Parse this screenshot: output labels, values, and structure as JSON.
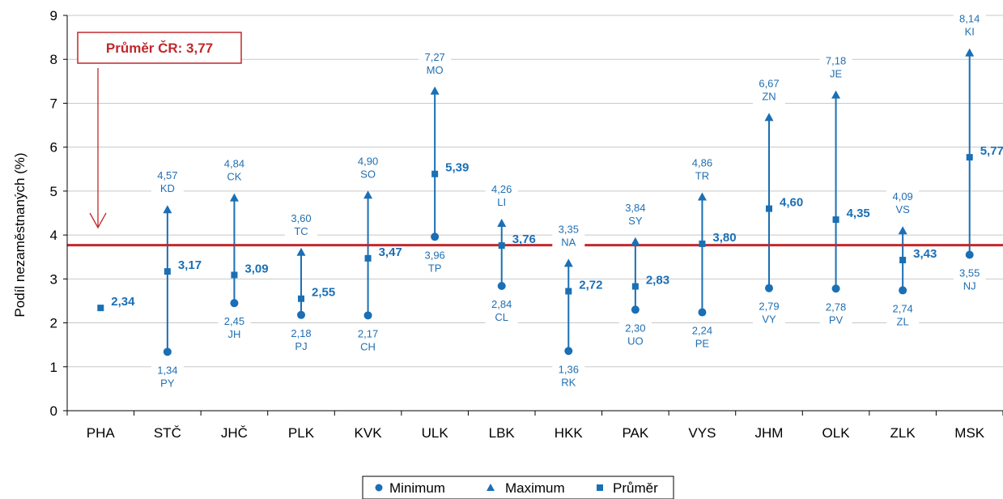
{
  "chart_data": {
    "type": "scatter",
    "ylabel": "Podíl nezaměstnaných (%)",
    "ylim": [
      0,
      9
    ],
    "yticks": [
      "0",
      "1",
      "2",
      "3",
      "4",
      "5",
      "6",
      "7",
      "8",
      "9"
    ],
    "grid": true,
    "categories": [
      "PHA",
      "STČ",
      "JHČ",
      "PLK",
      "KVK",
      "ULK",
      "LBK",
      "HKK",
      "PAK",
      "VYS",
      "JHM",
      "OLK",
      "ZLK",
      "MSK"
    ],
    "series": [
      {
        "name": "Minimum",
        "values": [
          null,
          1.34,
          2.45,
          2.18,
          2.17,
          3.96,
          2.84,
          1.36,
          2.3,
          2.24,
          2.79,
          2.78,
          2.74,
          3.55
        ],
        "labels": [
          null,
          "1,34",
          "2,45",
          "2,18",
          "2,17",
          "3,96",
          "2,84",
          "1,36",
          "2,30",
          "2,24",
          "2,79",
          "2,78",
          "2,74",
          "3,55"
        ],
        "codes": [
          null,
          "PY",
          "JH",
          "PJ",
          "CH",
          "TP",
          "CL",
          "RK",
          "UO",
          "PE",
          "VY",
          "PV",
          "ZL",
          "NJ"
        ]
      },
      {
        "name": "Maximum",
        "values": [
          null,
          4.57,
          4.84,
          3.6,
          4.9,
          7.27,
          4.26,
          3.35,
          3.84,
          4.86,
          6.67,
          7.18,
          4.09,
          8.14
        ],
        "labels": [
          null,
          "4,57",
          "4,84",
          "3,60",
          "4,90",
          "7,27",
          "4,26",
          "3,35",
          "3,84",
          "4,86",
          "6,67",
          "7,18",
          "4,09",
          "8,14"
        ],
        "codes": [
          null,
          "KD",
          "CK",
          "TC",
          "SO",
          "MO",
          "LI",
          "NA",
          "SY",
          "TR",
          "ZN",
          "JE",
          "VS",
          "KI"
        ]
      },
      {
        "name": "Průměr",
        "values": [
          2.34,
          3.17,
          3.09,
          2.55,
          3.47,
          5.39,
          3.76,
          2.72,
          2.83,
          3.8,
          4.6,
          4.35,
          3.43,
          5.77
        ],
        "labels": [
          "2,34",
          "3,17",
          "3,09",
          "2,55",
          "3,47",
          "5,39",
          "3,76",
          "2,72",
          "2,83",
          "3,80",
          "4,60",
          "4,35",
          "3,43",
          "5,77"
        ]
      }
    ],
    "reference_line": {
      "value": 3.77,
      "label": "Průměr ČR: 3,77",
      "color": "#c0282d"
    },
    "legend": {
      "placement": "bottom-center",
      "items": [
        "Minimum",
        "Maximum",
        "Průměr"
      ]
    },
    "colors": {
      "marker": "#1a6fb5",
      "label": "#1f6fb2",
      "grid": "#c8c8c8",
      "reference": "#c0282d"
    }
  }
}
